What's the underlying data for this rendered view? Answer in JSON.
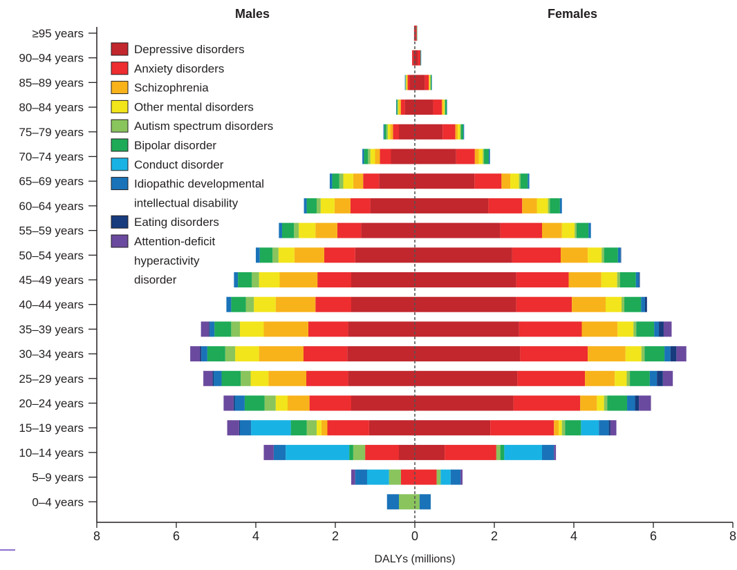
{
  "chart_data": {
    "type": "bar",
    "orientation": "horizontal",
    "stacked": true,
    "diverging": true,
    "left_title": "Males",
    "right_title": "Females",
    "xlabel": "DALYs (millions)",
    "xlim": [
      -8,
      8
    ],
    "xticks": [
      8,
      6,
      4,
      2,
      0,
      2,
      4,
      6,
      8
    ],
    "categories": [
      "≥95 years",
      "90–94 years",
      "85–89 years",
      "80–84 years",
      "75–79 years",
      "70–74 years",
      "65–69 years",
      "60–64 years",
      "55–59 years",
      "50–54 years",
      "45–49 years",
      "40–44 years",
      "35–39 years",
      "30–34 years",
      "25–29 years",
      "20–24 years",
      "15–19 years",
      "10–14 years",
      "5–9 years",
      "0–4 years"
    ],
    "legend_position": "top-left",
    "series": [
      {
        "name": "Depressive disorders",
        "color": "#c1272d",
        "males": [
          0.01,
          0.04,
          0.13,
          0.25,
          0.4,
          0.6,
          0.9,
          1.12,
          1.35,
          1.5,
          1.6,
          1.6,
          1.68,
          1.7,
          1.68,
          1.6,
          1.15,
          0.4,
          0.0,
          0.0
        ],
        "females": [
          0.03,
          0.08,
          0.25,
          0.46,
          0.7,
          1.04,
          1.5,
          1.85,
          2.15,
          2.45,
          2.55,
          2.55,
          2.62,
          2.65,
          2.58,
          2.48,
          1.9,
          0.75,
          0.0,
          0.0
        ]
      },
      {
        "name": "Anxiety disorders",
        "color": "#ed2d2f",
        "males": [
          0.01,
          0.03,
          0.05,
          0.1,
          0.15,
          0.28,
          0.4,
          0.5,
          0.6,
          0.78,
          0.85,
          0.9,
          1.0,
          1.1,
          1.05,
          1.05,
          1.05,
          0.85,
          0.35,
          0.0
        ],
        "females": [
          0.02,
          0.06,
          0.1,
          0.22,
          0.32,
          0.47,
          0.68,
          0.85,
          1.05,
          1.22,
          1.32,
          1.4,
          1.58,
          1.7,
          1.7,
          1.68,
          1.6,
          1.3,
          0.55,
          0.0
        ]
      },
      {
        "name": "Schizophrenia",
        "color": "#f8b31b",
        "males": [
          0.0,
          0.0,
          0.02,
          0.04,
          0.07,
          0.12,
          0.25,
          0.4,
          0.55,
          0.75,
          0.95,
          1.0,
          1.12,
          1.12,
          0.95,
          0.55,
          0.15,
          0.0,
          0.0,
          0.0
        ],
        "females": [
          0.0,
          0.0,
          0.02,
          0.04,
          0.06,
          0.1,
          0.22,
          0.37,
          0.5,
          0.68,
          0.82,
          0.85,
          0.9,
          0.95,
          0.75,
          0.42,
          0.12,
          0.0,
          0.0,
          0.0
        ]
      },
      {
        "name": "Other mental disorders",
        "color": "#f2e51b",
        "males": [
          0.0,
          0.0,
          0.02,
          0.03,
          0.06,
          0.12,
          0.25,
          0.35,
          0.42,
          0.4,
          0.52,
          0.55,
          0.6,
          0.6,
          0.45,
          0.3,
          0.12,
          0.0,
          0.0,
          0.0
        ],
        "females": [
          0.0,
          0.0,
          0.02,
          0.03,
          0.06,
          0.1,
          0.22,
          0.28,
          0.32,
          0.35,
          0.4,
          0.4,
          0.4,
          0.4,
          0.3,
          0.18,
          0.08,
          0.0,
          0.0,
          0.0
        ]
      },
      {
        "name": "Autism spectrum disorders",
        "color": "#89c45d",
        "males": [
          0.0,
          0.0,
          0.01,
          0.02,
          0.04,
          0.06,
          0.1,
          0.1,
          0.12,
          0.15,
          0.18,
          0.2,
          0.22,
          0.25,
          0.25,
          0.28,
          0.25,
          0.3,
          0.3,
          0.4
        ],
        "females": [
          0.0,
          0.0,
          0.01,
          0.01,
          0.02,
          0.03,
          0.04,
          0.05,
          0.05,
          0.06,
          0.07,
          0.07,
          0.07,
          0.08,
          0.08,
          0.08,
          0.08,
          0.1,
          0.1,
          0.12
        ]
      },
      {
        "name": "Bipolar disorder",
        "color": "#1eaa57",
        "males": [
          0.0,
          0.0,
          0.01,
          0.02,
          0.05,
          0.1,
          0.18,
          0.25,
          0.3,
          0.32,
          0.35,
          0.37,
          0.42,
          0.45,
          0.48,
          0.5,
          0.4,
          0.1,
          0.0,
          0.0
        ],
        "females": [
          0.01,
          0.01,
          0.02,
          0.04,
          0.06,
          0.12,
          0.18,
          0.25,
          0.3,
          0.35,
          0.4,
          0.42,
          0.45,
          0.5,
          0.5,
          0.5,
          0.4,
          0.1,
          0.0,
          0.0
        ]
      },
      {
        "name": "Conduct disorder",
        "color": "#19b2e4",
        "males": [
          0.0,
          0.0,
          0.0,
          0.0,
          0.0,
          0.0,
          0.0,
          0.0,
          0.0,
          0.0,
          0.0,
          0.0,
          0.0,
          0.0,
          0.0,
          0.0,
          1.0,
          1.6,
          0.55,
          0.0
        ],
        "females": [
          0.0,
          0.0,
          0.0,
          0.0,
          0.0,
          0.0,
          0.0,
          0.0,
          0.0,
          0.0,
          0.0,
          0.0,
          0.0,
          0.0,
          0.0,
          0.0,
          0.45,
          0.95,
          0.25,
          0.0
        ]
      },
      {
        "name": "Idiopathic developmental intellectual disability",
        "color": "#1a73b8",
        "males": [
          0.0,
          0.0,
          0.01,
          0.01,
          0.02,
          0.04,
          0.06,
          0.07,
          0.08,
          0.1,
          0.1,
          0.12,
          0.12,
          0.15,
          0.2,
          0.25,
          0.28,
          0.3,
          0.3,
          0.3
        ],
        "females": [
          0.0,
          0.01,
          0.01,
          0.01,
          0.02,
          0.03,
          0.04,
          0.05,
          0.06,
          0.07,
          0.08,
          0.1,
          0.12,
          0.15,
          0.18,
          0.2,
          0.25,
          0.3,
          0.25,
          0.28
        ]
      },
      {
        "name": "Eating disorders",
        "color": "#173b7d",
        "males": [
          0.0,
          0.0,
          0.0,
          0.0,
          0.0,
          0.0,
          0.0,
          0.0,
          0.0,
          0.0,
          0.0,
          0.0,
          0.02,
          0.03,
          0.03,
          0.03,
          0.02,
          0.0,
          0.0,
          0.0
        ],
        "females": [
          0.0,
          0.0,
          0.0,
          0.0,
          0.0,
          0.0,
          0.0,
          0.0,
          0.0,
          0.01,
          0.02,
          0.05,
          0.12,
          0.15,
          0.15,
          0.1,
          0.04,
          0.0,
          0.0,
          0.0
        ]
      },
      {
        "name": "Attention-deficit hyperactivity disorder",
        "color": "#6a4a9e",
        "males": [
          0.0,
          0.0,
          0.0,
          0.0,
          0.0,
          0.0,
          0.0,
          0.0,
          0.0,
          0.0,
          0.0,
          0.0,
          0.2,
          0.25,
          0.23,
          0.25,
          0.3,
          0.25,
          0.1,
          0.0
        ],
        "females": [
          0.0,
          0.0,
          0.0,
          0.0,
          0.0,
          0.0,
          0.0,
          0.0,
          0.0,
          0.0,
          0.0,
          0.0,
          0.2,
          0.25,
          0.25,
          0.3,
          0.15,
          0.05,
          0.05,
          0.0
        ]
      }
    ]
  }
}
